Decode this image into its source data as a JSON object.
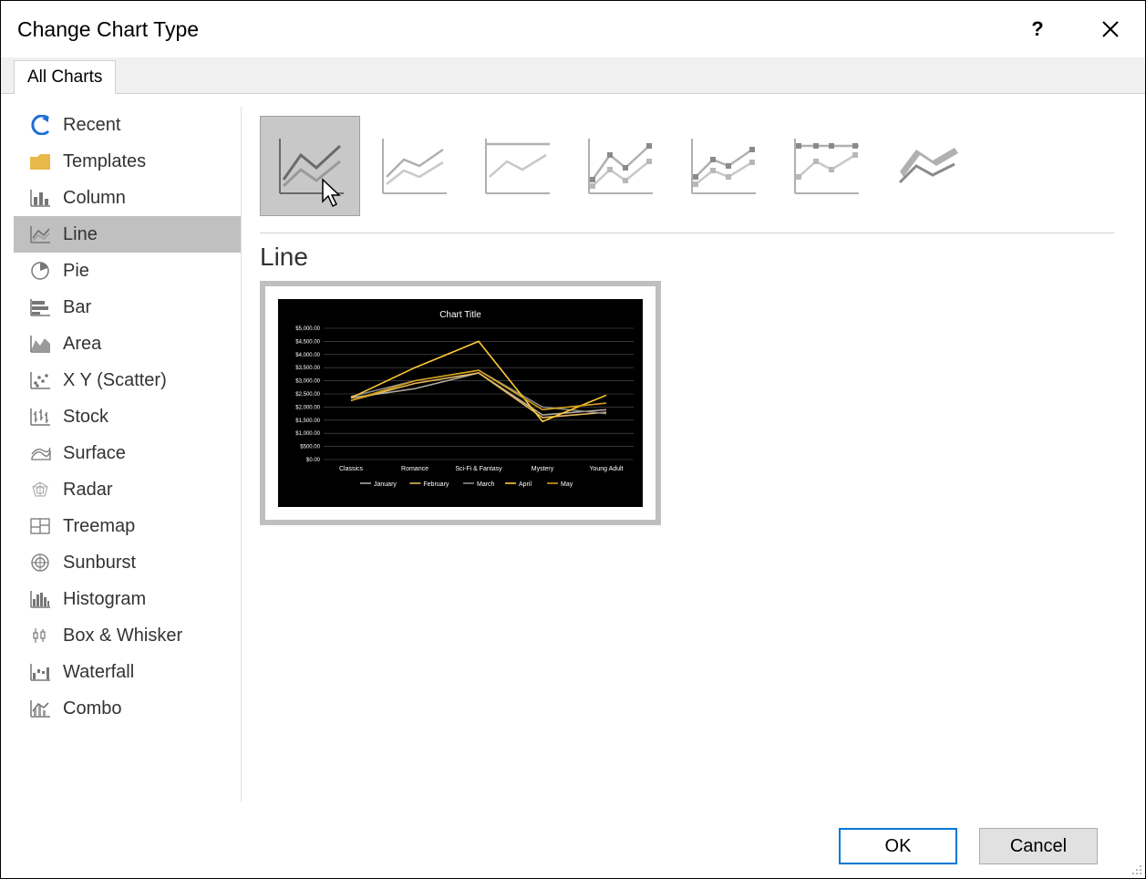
{
  "dialog": {
    "title": "Change Chart Type",
    "tab_label": "All Charts"
  },
  "sidebar": {
    "items": [
      {
        "id": "recent",
        "label": "Recent"
      },
      {
        "id": "templates",
        "label": "Templates"
      },
      {
        "id": "column",
        "label": "Column"
      },
      {
        "id": "line",
        "label": "Line"
      },
      {
        "id": "pie",
        "label": "Pie"
      },
      {
        "id": "bar",
        "label": "Bar"
      },
      {
        "id": "area",
        "label": "Area"
      },
      {
        "id": "scatter",
        "label": "X Y (Scatter)"
      },
      {
        "id": "stock",
        "label": "Stock"
      },
      {
        "id": "surface",
        "label": "Surface"
      },
      {
        "id": "radar",
        "label": "Radar"
      },
      {
        "id": "treemap",
        "label": "Treemap"
      },
      {
        "id": "sunburst",
        "label": "Sunburst"
      },
      {
        "id": "histogram",
        "label": "Histogram"
      },
      {
        "id": "boxwhisker",
        "label": "Box & Whisker"
      },
      {
        "id": "waterfall",
        "label": "Waterfall"
      },
      {
        "id": "combo",
        "label": "Combo"
      }
    ],
    "selected_index": 3
  },
  "subtypes": {
    "selected_index": 0,
    "count": 7
  },
  "section": {
    "title": "Line"
  },
  "preview_chart": {
    "type": "line",
    "title": "Chart Title",
    "title_fontsize": 10,
    "background_color": "#000000",
    "text_color": "#ffffff",
    "grid_color": "#595959",
    "categories": [
      "Classics",
      "Romance",
      "Sci-Fi & Fantasy",
      "Mystery",
      "Young Adult"
    ],
    "y_axis": {
      "min": 0,
      "max": 5000,
      "step": 500,
      "tick_labels": [
        "$0.00",
        "$500.00",
        "$1,000.00",
        "$1,500.00",
        "$2,000.00",
        "$2,500.00",
        "$3,000.00",
        "$3,500.00",
        "$4,000.00",
        "$4,500.00",
        "$5,000.00"
      ]
    },
    "series": [
      {
        "name": "January",
        "color": "#b0aba0",
        "values": [
          2350,
          2700,
          3300,
          1700,
          1900
        ]
      },
      {
        "name": "February",
        "color": "#e6b85c",
        "values": [
          2250,
          2900,
          3300,
          1600,
          1800
        ]
      },
      {
        "name": "March",
        "color": "#8c8c8c",
        "values": [
          2400,
          3000,
          3400,
          2000,
          1750
        ]
      },
      {
        "name": "April",
        "color": "#ffcc33",
        "values": [
          2350,
          3500,
          4500,
          1450,
          2450
        ]
      },
      {
        "name": "May",
        "color": "#d4a017",
        "values": [
          2250,
          3000,
          3400,
          1900,
          2150
        ]
      }
    ],
    "label_fontsize": 7
  },
  "footer": {
    "ok_label": "OK",
    "cancel_label": "Cancel"
  }
}
